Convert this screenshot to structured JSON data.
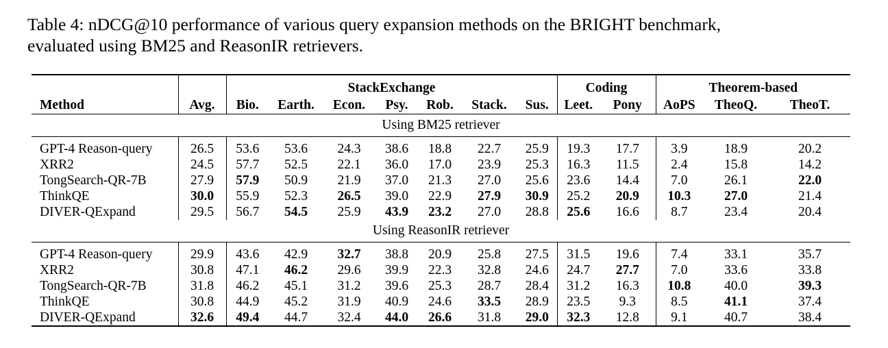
{
  "caption": {
    "line1": "Table 4: nDCG@10 performance of various query expansion methods on the BRIGHT benchmark,",
    "line2": "evaluated using BM25 and ReasonIR retrievers."
  },
  "groups": {
    "stackexchange": "StackExchange",
    "coding": "Coding",
    "theorem": "Theorem-based"
  },
  "columns": [
    "Method",
    "Avg.",
    "Bio.",
    "Earth.",
    "Econ.",
    "Psy.",
    "Rob.",
    "Stack.",
    "Sus.",
    "Leet.",
    "Pony",
    "AoPS",
    "TheoQ.",
    "TheoT."
  ],
  "sections": [
    {
      "title": "Using BM25 retriever",
      "rows": [
        {
          "method": "GPT-4 Reason-query",
          "values": [
            "26.5",
            "53.6",
            "53.6",
            "24.3",
            "38.6",
            "18.8",
            "22.7",
            "25.9",
            "19.3",
            "17.7",
            "3.9",
            "18.9",
            "20.2"
          ],
          "bold": []
        },
        {
          "method": "XRR2",
          "values": [
            "24.5",
            "57.7",
            "52.5",
            "22.1",
            "36.0",
            "17.0",
            "23.9",
            "25.3",
            "16.3",
            "11.5",
            "2.4",
            "15.8",
            "14.2"
          ],
          "bold": []
        },
        {
          "method": "TongSearch-QR-7B",
          "values": [
            "27.9",
            "57.9",
            "50.9",
            "21.9",
            "37.0",
            "21.3",
            "27.0",
            "25.6",
            "23.6",
            "14.4",
            "7.0",
            "26.1",
            "22.0"
          ],
          "bold": [
            1,
            12
          ]
        },
        {
          "method": "ThinkQE",
          "values": [
            "30.0",
            "55.9",
            "52.3",
            "26.5",
            "39.0",
            "22.9",
            "27.9",
            "30.9",
            "25.2",
            "20.9",
            "10.3",
            "27.0",
            "21.4"
          ],
          "bold": [
            0,
            3,
            6,
            7,
            9,
            10,
            11
          ]
        },
        {
          "method": "DIVER-QExpand",
          "values": [
            "29.5",
            "56.7",
            "54.5",
            "25.9",
            "43.9",
            "23.2",
            "27.0",
            "28.8",
            "25.6",
            "16.6",
            "8.7",
            "23.4",
            "20.4"
          ],
          "bold": [
            2,
            4,
            5,
            8
          ]
        }
      ]
    },
    {
      "title": "Using ReasonIR retriever",
      "rows": [
        {
          "method": "GPT-4 Reason-query",
          "values": [
            "29.9",
            "43.6",
            "42.9",
            "32.7",
            "38.8",
            "20.9",
            "25.8",
            "27.5",
            "31.5",
            "19.6",
            "7.4",
            "33.1",
            "35.7"
          ],
          "bold": [
            3
          ]
        },
        {
          "method": "XRR2",
          "values": [
            "30.8",
            "47.1",
            "46.2",
            "29.6",
            "39.9",
            "22.3",
            "32.8",
            "24.6",
            "24.7",
            "27.7",
            "7.0",
            "33.6",
            "33.8"
          ],
          "bold": [
            2,
            9
          ]
        },
        {
          "method": "TongSearch-QR-7B",
          "values": [
            "31.8",
            "46.2",
            "45.1",
            "31.2",
            "39.6",
            "25.3",
            "28.7",
            "28.4",
            "31.2",
            "16.3",
            "10.8",
            "40.0",
            "39.3"
          ],
          "bold": [
            10,
            12
          ]
        },
        {
          "method": "ThinkQE",
          "values": [
            "30.8",
            "44.9",
            "45.2",
            "31.9",
            "40.9",
            "24.6",
            "33.5",
            "28.9",
            "23.5",
            "9.3",
            "8.5",
            "41.1",
            "37.4"
          ],
          "bold": [
            6,
            11
          ]
        },
        {
          "method": "DIVER-QExpand",
          "values": [
            "32.6",
            "49.4",
            "44.7",
            "32.4",
            "44.0",
            "26.6",
            "31.8",
            "29.0",
            "32.3",
            "12.8",
            "9.1",
            "40.7",
            "38.4"
          ],
          "bold": [
            0,
            1,
            4,
            5,
            7,
            8
          ]
        }
      ]
    }
  ]
}
